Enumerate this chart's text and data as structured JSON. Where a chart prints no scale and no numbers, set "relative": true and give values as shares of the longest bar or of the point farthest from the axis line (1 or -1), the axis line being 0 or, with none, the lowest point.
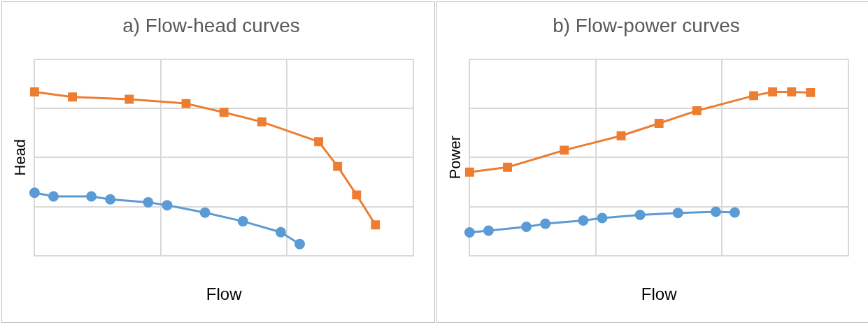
{
  "chart_data": [
    {
      "type": "line",
      "title": "a) Flow-head curves",
      "xlabel": "Flow",
      "ylabel": "Head",
      "relative": true,
      "grid": true,
      "legend": false,
      "categories": [
        null,
        null,
        null,
        null,
        null,
        null,
        null,
        null,
        null,
        null,
        null,
        null,
        null,
        null,
        null,
        null,
        null,
        null,
        null,
        null,
        null
      ],
      "series": [
        {
          "color": "#ed7d31",
          "marker": "square",
          "values": [
            1,
            null,
            0.969,
            null,
            null,
            0.955,
            null,
            null,
            0.929,
            null,
            0.875,
            null,
            0.817,
            null,
            null,
            0.696,
            0.545,
            0.371,
            0.188,
            null,
            null
          ]
        },
        {
          "color": "#5b9bd5",
          "marker": "circle",
          "values": [
            0.384,
            0.362,
            null,
            0.362,
            0.344,
            null,
            0.326,
            0.308,
            null,
            0.263,
            null,
            0.21,
            null,
            0.143,
            0.071,
            null,
            null,
            null,
            null,
            null,
            null
          ]
        }
      ]
    },
    {
      "type": "line",
      "title": "b) Flow-power curves",
      "xlabel": "Flow",
      "ylabel": "Power",
      "relative": true,
      "grid": true,
      "legend": false,
      "categories": [
        null,
        null,
        null,
        null,
        null,
        null,
        null,
        null,
        null,
        null,
        null,
        null,
        null,
        null,
        null,
        null,
        null,
        null,
        null,
        null,
        null
      ],
      "series": [
        {
          "color": "#ed7d31",
          "marker": "square",
          "values": [
            0.51,
            null,
            0.54,
            null,
            null,
            0.644,
            null,
            null,
            0.732,
            null,
            0.808,
            null,
            0.885,
            null,
            null,
            0.977,
            1,
            1,
            0.996,
            null,
            null
          ]
        },
        {
          "color": "#5b9bd5",
          "marker": "circle",
          "values": [
            0.142,
            0.153,
            null,
            0.176,
            0.195,
            null,
            0.215,
            0.23,
            null,
            0.249,
            null,
            0.261,
            null,
            0.268,
            0.264,
            null,
            null,
            null,
            null,
            null,
            null
          ]
        }
      ]
    }
  ]
}
